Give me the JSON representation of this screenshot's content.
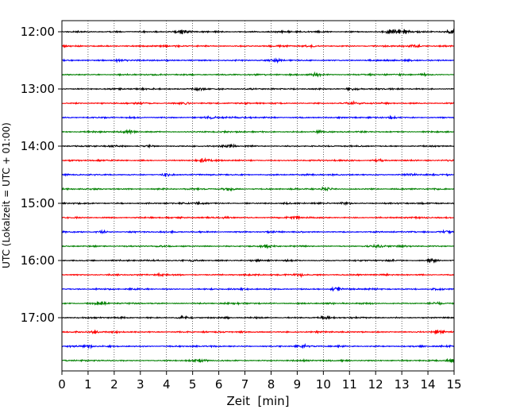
{
  "chart_data": {
    "type": "line",
    "title": "",
    "xlabel": "Zeit  [min]",
    "ylabel": "UTC (Lokalzeit = UTC + 01:00)",
    "xlim": [
      0,
      15
    ],
    "x_ticks": [
      "0",
      "1",
      "2",
      "3",
      "4",
      "5",
      "6",
      "7",
      "8",
      "9",
      "10",
      "11",
      "12",
      "13",
      "14",
      "15"
    ],
    "grid": "vertical dotted lines at each minute",
    "trace_interval_minutes": 15,
    "start_time": "12:00",
    "hour_labels": [
      "12:00",
      "13:00",
      "14:00",
      "15:00",
      "16:00",
      "17:00"
    ],
    "trace_color_cycle": [
      "#000000",
      "#ff0000",
      "#0000ff",
      "#008000"
    ],
    "trace_count": 24,
    "series": [
      {
        "start": "12:00",
        "color": "#000000",
        "events": [
          [
            4.7,
            1.5
          ],
          [
            12.6,
            2.6
          ],
          [
            13.0,
            3.0
          ],
          [
            14.9,
            2.0
          ]
        ]
      },
      {
        "start": "12:15",
        "color": "#ff0000",
        "events": [
          [
            9.5,
            1.5
          ],
          [
            13.5,
            1.3
          ]
        ]
      },
      {
        "start": "12:30",
        "color": "#0000ff",
        "events": [
          [
            2.2,
            1.3
          ],
          [
            8.2,
            1.2
          ]
        ]
      },
      {
        "start": "12:45",
        "color": "#008000",
        "events": [
          [
            9.7,
            2.0
          ],
          [
            13.9,
            1.4
          ]
        ]
      },
      {
        "start": "13:00",
        "color": "#000000",
        "events": [
          [
            5.2,
            2.3
          ],
          [
            11.1,
            1.2
          ]
        ]
      },
      {
        "start": "13:15",
        "color": "#ff0000",
        "events": [
          [
            4.7,
            2.0
          ],
          [
            11.2,
            1.4
          ]
        ]
      },
      {
        "start": "13:30",
        "color": "#0000ff",
        "events": [
          [
            5.7,
            2.0
          ],
          [
            12.6,
            1.3
          ]
        ]
      },
      {
        "start": "13:45",
        "color": "#008000",
        "events": [
          [
            2.6,
            1.6
          ],
          [
            9.8,
            1.3
          ]
        ]
      },
      {
        "start": "14:00",
        "color": "#000000",
        "events": [
          [
            6.4,
            1.8
          ],
          [
            3.3,
            1.2
          ]
        ]
      },
      {
        "start": "14:15",
        "color": "#ff0000",
        "events": [
          [
            5.4,
            1.6
          ],
          [
            12.1,
            1.3
          ]
        ]
      },
      {
        "start": "14:30",
        "color": "#0000ff",
        "events": [
          [
            4.0,
            1.4
          ],
          [
            13.3,
            1.3
          ]
        ]
      },
      {
        "start": "14:45",
        "color": "#008000",
        "events": [
          [
            6.4,
            1.8
          ],
          [
            10.1,
            1.6
          ]
        ]
      },
      {
        "start": "15:00",
        "color": "#000000",
        "events": [
          [
            10.8,
            1.6
          ],
          [
            5.2,
            1.2
          ]
        ]
      },
      {
        "start": "15:15",
        "color": "#ff0000",
        "events": [
          [
            8.9,
            1.4
          ],
          [
            6.3,
            1.2
          ]
        ]
      },
      {
        "start": "15:30",
        "color": "#0000ff",
        "events": [
          [
            14.7,
            1.7
          ],
          [
            1.5,
            1.2
          ]
        ]
      },
      {
        "start": "15:45",
        "color": "#008000",
        "events": [
          [
            12.1,
            1.6
          ],
          [
            7.9,
            1.2
          ]
        ]
      },
      {
        "start": "16:00",
        "color": "#000000",
        "events": [
          [
            14.2,
            1.8
          ],
          [
            5.1,
            1.2
          ]
        ]
      },
      {
        "start": "16:15",
        "color": "#ff0000",
        "events": [
          [
            9.1,
            1.8
          ],
          [
            3.8,
            1.3
          ]
        ]
      },
      {
        "start": "16:30",
        "color": "#0000ff",
        "events": [
          [
            10.5,
            1.8
          ],
          [
            14.3,
            1.3
          ]
        ]
      },
      {
        "start": "16:45",
        "color": "#008000",
        "events": [
          [
            1.5,
            1.5
          ],
          [
            14.3,
            1.3
          ]
        ]
      },
      {
        "start": "17:00",
        "color": "#000000",
        "events": [
          [
            4.6,
            1.5
          ],
          [
            10.0,
            1.5
          ]
        ]
      },
      {
        "start": "17:15",
        "color": "#ff0000",
        "events": [
          [
            1.2,
            1.8
          ],
          [
            14.4,
            1.6
          ]
        ]
      },
      {
        "start": "17:30",
        "color": "#0000ff",
        "events": [
          [
            9.2,
            1.8
          ],
          [
            1.0,
            1.4
          ]
        ]
      },
      {
        "start": "17:45",
        "color": "#008000",
        "events": [
          [
            14.8,
            1.7
          ],
          [
            5.3,
            1.2
          ]
        ]
      }
    ]
  }
}
